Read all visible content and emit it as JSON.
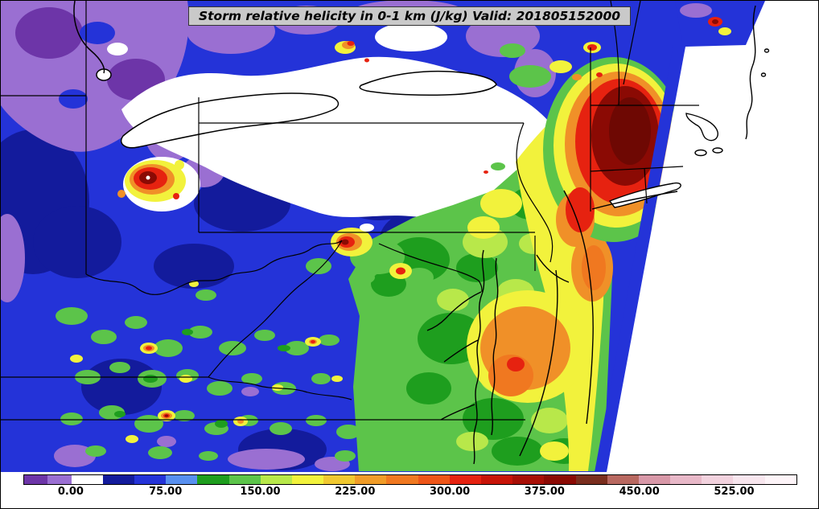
{
  "title_banner": {
    "text": "Storm relative helicity in 0-1 km (J/kg) Valid: 201805152000",
    "background": "#c9c9c9",
    "text_color": "#000000"
  },
  "chart_data": {
    "type": "heatmap",
    "variant": "filled-contour weather map",
    "field": "Storm relative helicity in 0-1 km",
    "units": "J/kg",
    "valid": "201805152000",
    "region": "Northeastern United States: Great Lakes eastward to the Atlantic coast (Ohio Valley, Mid-Atlantic, New England)",
    "grid": false,
    "legend_position": "bottom horizontal colorbar",
    "colorbar": {
      "orientation": "horizontal",
      "min": -37.5,
      "max": 575,
      "tick_values": [
        0,
        75,
        150,
        225,
        300,
        375,
        450,
        525
      ],
      "tick_labels": [
        "0.00",
        "75.00",
        "150.00",
        "225.00",
        "300.00",
        "375.00",
        "450.00",
        "525.00"
      ],
      "segments": [
        {
          "from": -37.5,
          "to": -18.75,
          "color": "#6d35a8"
        },
        {
          "from": -18.75,
          "to": 0,
          "color": "#9a6fd2"
        },
        {
          "from": 0,
          "to": 25,
          "color": "#ffffff"
        },
        {
          "from": 25,
          "to": 50,
          "color": "#131b9c"
        },
        {
          "from": 50,
          "to": 75,
          "color": "#2433d8"
        },
        {
          "from": 75,
          "to": 100,
          "color": "#5890f0"
        },
        {
          "from": 100,
          "to": 125,
          "color": "#1e9e1e"
        },
        {
          "from": 125,
          "to": 150,
          "color": "#5cc44a"
        },
        {
          "from": 150,
          "to": 175,
          "color": "#b8e84a"
        },
        {
          "from": 175,
          "to": 200,
          "color": "#f2f23c"
        },
        {
          "from": 200,
          "to": 225,
          "color": "#f0c830"
        },
        {
          "from": 225,
          "to": 250,
          "color": "#f09c28"
        },
        {
          "from": 250,
          "to": 275,
          "color": "#f07820"
        },
        {
          "from": 275,
          "to": 300,
          "color": "#ee5518"
        },
        {
          "from": 300,
          "to": 325,
          "color": "#e62210"
        },
        {
          "from": 325,
          "to": 350,
          "color": "#c81408"
        },
        {
          "from": 350,
          "to": 375,
          "color": "#a80f06"
        },
        {
          "from": 375,
          "to": 400,
          "color": "#8b0a04"
        },
        {
          "from": 400,
          "to": 425,
          "color": "#7a2e1e"
        },
        {
          "from": 425,
          "to": 450,
          "color": "#b86860"
        },
        {
          "from": 450,
          "to": 475,
          "color": "#d898a8"
        },
        {
          "from": 475,
          "to": 500,
          "color": "#e8b8c8"
        },
        {
          "from": 500,
          "to": 525,
          "color": "#f2d2de"
        },
        {
          "from": 525,
          "to": 550,
          "color": "#f8e6ee"
        },
        {
          "from": 550,
          "to": 575,
          "color": "#fdf4f8"
        }
      ]
    },
    "map_palette": {
      "negative_purple": "#9a6fd2",
      "near_zero_white": "#ffffff",
      "low_blue": "#2433d8",
      "navy": "#131b9c",
      "green": "#5cc44a",
      "yellow": "#f2f23c",
      "orange": "#f09028",
      "red": "#e62210",
      "dark_red": "#8b0a04"
    },
    "notable_regions": [
      {
        "area": "Southern New England (CT / RI / MA)",
        "approx_value": "300-450+ J/kg maximum, red with dark-red core"
      },
      {
        "area": "Coastal New Jersey, Delmarva and Chesapeake Bay",
        "approx_value": "150-300 J/kg, yellow to orange"
      },
      {
        "area": "North-central Ohio isolated cell",
        "approx_value": "300-400 J/kg small red core"
      },
      {
        "area": "Great Lakes corridor (Lakes Erie / Ontario eastward)",
        "approx_value": "0-25 J/kg white band"
      },
      {
        "area": "Upper Great Lakes / northwestern corner and northern edge",
        "approx_value": "below 0 J/kg, purple"
      },
      {
        "area": "Ohio Valley, Kentucky, Tennessee, interior Virginia",
        "approx_value": "25-75 J/kg blue background with scattered 75-250 J/kg convective speckles"
      },
      {
        "area": "Atlantic, southeast of the diagonal data-swath edge",
        "approx_value": "no data (white wedge with coastline outlines)"
      }
    ]
  }
}
